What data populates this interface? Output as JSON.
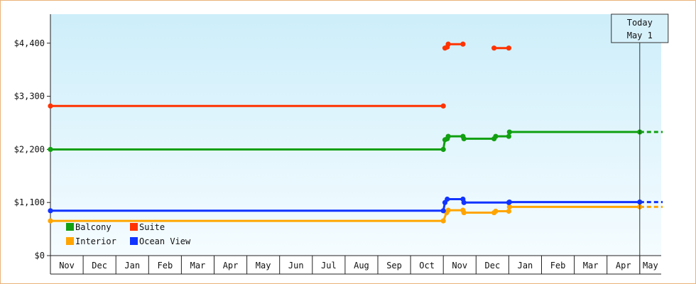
{
  "chart_data": {
    "type": "line",
    "title": "",
    "xlabel": "",
    "ylabel": "",
    "ylim": [
      0,
      5000
    ],
    "y_ticks": [
      {
        "value": 0,
        "label": "$0"
      },
      {
        "value": 1100,
        "label": "$1,100"
      },
      {
        "value": 2200,
        "label": "$2,200"
      },
      {
        "value": 3300,
        "label": "$3,300"
      },
      {
        "value": 4400,
        "label": "$4,400"
      }
    ],
    "x_ticks": [
      "Nov",
      "Dec",
      "Jan",
      "Feb",
      "Mar",
      "Apr",
      "May",
      "Jun",
      "Jul",
      "Aug",
      "Sep",
      "Oct",
      "Nov",
      "Dec",
      "Jan",
      "Feb",
      "Mar",
      "Apr",
      "May"
    ],
    "xlim": [
      0,
      18.45
    ],
    "grid": false,
    "legend_position": "bottom-left",
    "today_marker": {
      "line1": "Today",
      "line2": "May 1",
      "x": 18.0
    },
    "series": [
      {
        "name": "Balcony",
        "color": "#11a011",
        "points": [
          [
            0.0,
            2199
          ],
          [
            12.0,
            2199
          ],
          [
            12.05,
            2399
          ],
          [
            12.12,
            2420
          ],
          [
            12.15,
            2470
          ],
          [
            12.6,
            2470
          ],
          [
            12.63,
            2420
          ],
          [
            13.55,
            2420
          ],
          [
            13.6,
            2470
          ],
          [
            14.0,
            2470
          ],
          [
            14.02,
            2560
          ],
          [
            18.0,
            2560
          ]
        ],
        "forecast_to": 18.7
      },
      {
        "name": "Suite",
        "color": "#ff3300",
        "points": [
          [
            0.0,
            3099
          ],
          [
            12.0,
            3099
          ]
        ],
        "segments": [
          [
            [
              12.05,
              4299
            ],
            [
              12.12,
              4320
            ],
            [
              12.15,
              4380
            ],
            [
              12.6,
              4380
            ]
          ],
          [
            [
              13.55,
              4299
            ],
            [
              14.0,
              4299
            ]
          ]
        ]
      },
      {
        "name": "Interior",
        "color": "#ffa500",
        "points": [
          [
            0.0,
            719
          ],
          [
            12.0,
            719
          ],
          [
            12.1,
            889
          ],
          [
            12.15,
            939
          ],
          [
            12.6,
            939
          ],
          [
            12.63,
            889
          ],
          [
            13.55,
            889
          ],
          [
            13.6,
            919
          ],
          [
            14.0,
            919
          ],
          [
            14.02,
            1009
          ],
          [
            18.0,
            1009
          ]
        ],
        "forecast_to": 18.7
      },
      {
        "name": "Ocean View",
        "color": "#1133ff",
        "points": [
          [
            0.0,
            929
          ],
          [
            12.0,
            929
          ],
          [
            12.05,
            1099
          ],
          [
            12.12,
            1169
          ],
          [
            12.6,
            1169
          ],
          [
            12.63,
            1099
          ],
          [
            14.0,
            1099
          ],
          [
            14.02,
            1109
          ],
          [
            18.0,
            1109
          ]
        ],
        "forecast_to": 18.7
      }
    ]
  }
}
